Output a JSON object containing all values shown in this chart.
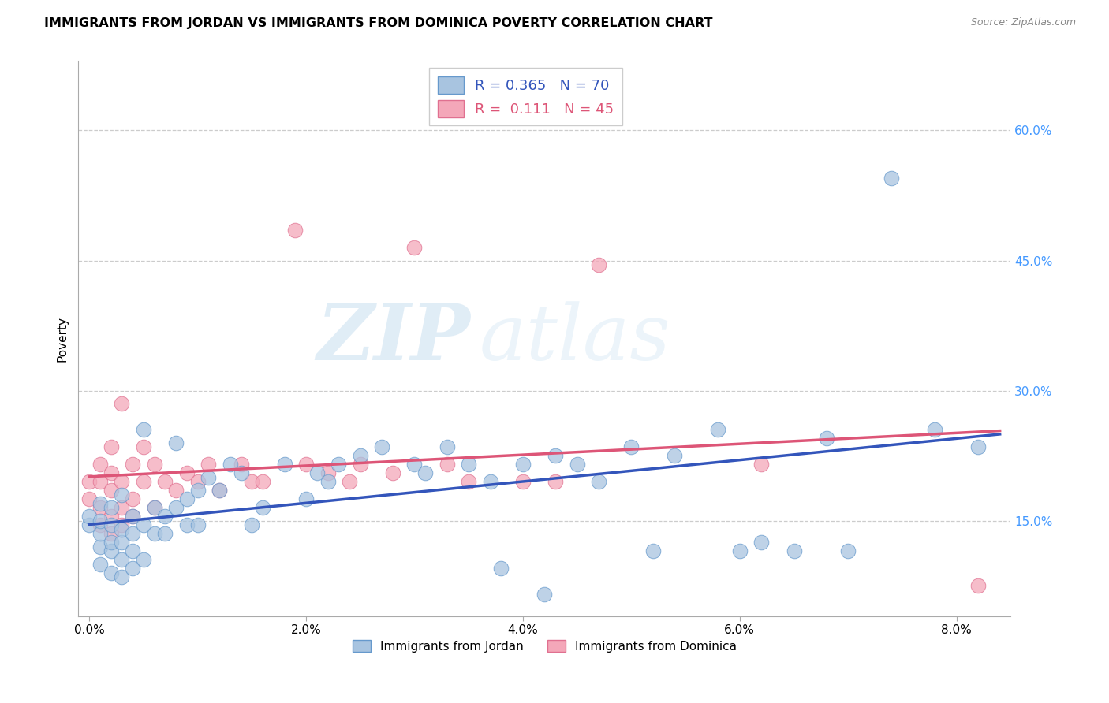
{
  "title": "IMMIGRANTS FROM JORDAN VS IMMIGRANTS FROM DOMINICA POVERTY CORRELATION CHART",
  "source": "Source: ZipAtlas.com",
  "xlabel_ticks": [
    "0.0%",
    "2.0%",
    "4.0%",
    "6.0%",
    "8.0%"
  ],
  "xlabel_values": [
    0.0,
    0.02,
    0.04,
    0.06,
    0.08
  ],
  "ylabel_ticks": [
    "15.0%",
    "30.0%",
    "45.0%",
    "60.0%"
  ],
  "ylabel_values": [
    0.15,
    0.3,
    0.45,
    0.6
  ],
  "xlim": [
    -0.001,
    0.085
  ],
  "ylim": [
    0.04,
    0.68
  ],
  "jordan_color": "#a8c4e0",
  "dominica_color": "#f4a7b9",
  "jordan_edge": "#6699cc",
  "dominica_edge": "#e07090",
  "trendline_jordan": "#3355bb",
  "trendline_dominica": "#dd5577",
  "jordan_R": 0.365,
  "jordan_N": 70,
  "dominica_R": 0.111,
  "dominica_N": 45,
  "jordan_x": [
    0.0,
    0.0,
    0.001,
    0.001,
    0.001,
    0.001,
    0.001,
    0.002,
    0.002,
    0.002,
    0.002,
    0.002,
    0.003,
    0.003,
    0.003,
    0.003,
    0.003,
    0.004,
    0.004,
    0.004,
    0.004,
    0.005,
    0.005,
    0.005,
    0.006,
    0.006,
    0.007,
    0.007,
    0.008,
    0.008,
    0.009,
    0.009,
    0.01,
    0.01,
    0.011,
    0.012,
    0.013,
    0.014,
    0.015,
    0.016,
    0.018,
    0.02,
    0.021,
    0.022,
    0.023,
    0.025,
    0.027,
    0.03,
    0.031,
    0.033,
    0.035,
    0.037,
    0.038,
    0.04,
    0.042,
    0.043,
    0.045,
    0.047,
    0.05,
    0.052,
    0.054,
    0.058,
    0.06,
    0.062,
    0.065,
    0.068,
    0.07,
    0.074,
    0.078,
    0.082
  ],
  "jordan_y": [
    0.145,
    0.155,
    0.1,
    0.12,
    0.135,
    0.15,
    0.17,
    0.09,
    0.115,
    0.125,
    0.145,
    0.165,
    0.085,
    0.105,
    0.125,
    0.14,
    0.18,
    0.095,
    0.115,
    0.135,
    0.155,
    0.105,
    0.145,
    0.255,
    0.135,
    0.165,
    0.135,
    0.155,
    0.165,
    0.24,
    0.145,
    0.175,
    0.145,
    0.185,
    0.2,
    0.185,
    0.215,
    0.205,
    0.145,
    0.165,
    0.215,
    0.175,
    0.205,
    0.195,
    0.215,
    0.225,
    0.235,
    0.215,
    0.205,
    0.235,
    0.215,
    0.195,
    0.095,
    0.215,
    0.065,
    0.225,
    0.215,
    0.195,
    0.235,
    0.115,
    0.225,
    0.255,
    0.115,
    0.125,
    0.115,
    0.245,
    0.115,
    0.545,
    0.255,
    0.235
  ],
  "dominica_x": [
    0.0,
    0.0,
    0.001,
    0.001,
    0.001,
    0.001,
    0.002,
    0.002,
    0.002,
    0.002,
    0.002,
    0.003,
    0.003,
    0.003,
    0.003,
    0.004,
    0.004,
    0.004,
    0.005,
    0.005,
    0.006,
    0.006,
    0.007,
    0.008,
    0.009,
    0.01,
    0.011,
    0.012,
    0.014,
    0.015,
    0.016,
    0.019,
    0.02,
    0.022,
    0.024,
    0.025,
    0.028,
    0.03,
    0.033,
    0.035,
    0.04,
    0.043,
    0.047,
    0.062,
    0.082
  ],
  "dominica_y": [
    0.175,
    0.195,
    0.145,
    0.165,
    0.195,
    0.215,
    0.135,
    0.155,
    0.185,
    0.205,
    0.235,
    0.145,
    0.165,
    0.195,
    0.285,
    0.155,
    0.175,
    0.215,
    0.195,
    0.235,
    0.165,
    0.215,
    0.195,
    0.185,
    0.205,
    0.195,
    0.215,
    0.185,
    0.215,
    0.195,
    0.195,
    0.485,
    0.215,
    0.205,
    0.195,
    0.215,
    0.205,
    0.465,
    0.215,
    0.195,
    0.195,
    0.195,
    0.445,
    0.215,
    0.075
  ],
  "watermark_zip": "ZIP",
  "watermark_atlas": "atlas",
  "legend_label_jordan": "R = 0.365   N = 70",
  "legend_label_dominica": "R =  0.111   N = 45",
  "bottom_legend_jordan": "Immigrants from Jordan",
  "bottom_legend_dominica": "Immigrants from Dominica"
}
